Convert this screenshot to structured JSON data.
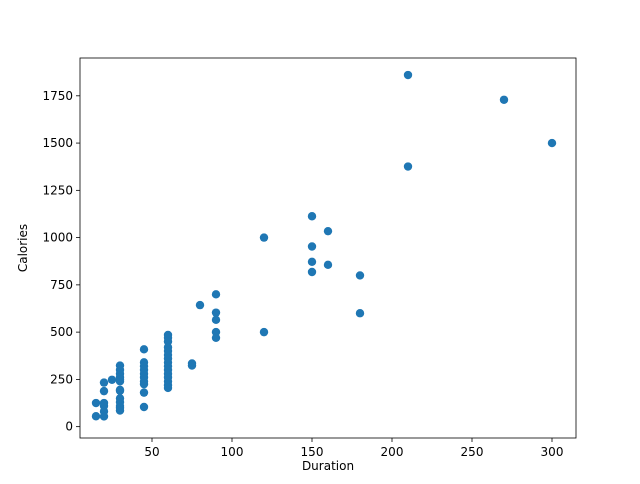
{
  "chart_data": {
    "type": "scatter",
    "xlabel": "Duration",
    "ylabel": "Calories",
    "xlim": [
      5,
      315
    ],
    "ylim": [
      -60,
      1950
    ],
    "xticks": [
      50,
      100,
      150,
      200,
      250,
      300
    ],
    "yticks": [
      0,
      250,
      500,
      750,
      1000,
      1250,
      1500,
      1750
    ],
    "grid": false,
    "color": "#1f77b4",
    "points": [
      [
        15,
        125
      ],
      [
        15,
        55
      ],
      [
        20,
        233
      ],
      [
        20,
        188
      ],
      [
        20,
        125
      ],
      [
        20,
        110
      ],
      [
        20,
        81
      ],
      [
        20,
        54
      ],
      [
        25,
        248
      ],
      [
        30,
        323
      ],
      [
        30,
        300
      ],
      [
        30,
        280
      ],
      [
        30,
        260
      ],
      [
        30,
        250
      ],
      [
        30,
        240
      ],
      [
        30,
        195
      ],
      [
        30,
        190
      ],
      [
        30,
        150
      ],
      [
        30,
        130
      ],
      [
        30,
        110
      ],
      [
        30,
        100
      ],
      [
        30,
        85
      ],
      [
        45,
        409
      ],
      [
        45,
        340
      ],
      [
        45,
        320
      ],
      [
        45,
        300
      ],
      [
        45,
        280
      ],
      [
        45,
        260
      ],
      [
        45,
        240
      ],
      [
        45,
        225
      ],
      [
        45,
        180
      ],
      [
        45,
        104
      ],
      [
        60,
        485
      ],
      [
        60,
        470
      ],
      [
        60,
        450
      ],
      [
        60,
        420
      ],
      [
        60,
        400
      ],
      [
        60,
        380
      ],
      [
        60,
        360
      ],
      [
        60,
        340
      ],
      [
        60,
        320
      ],
      [
        60,
        300
      ],
      [
        60,
        280
      ],
      [
        60,
        260
      ],
      [
        60,
        240
      ],
      [
        60,
        220
      ],
      [
        60,
        205
      ],
      [
        75,
        334
      ],
      [
        75,
        323
      ],
      [
        80,
        643
      ],
      [
        90,
        700
      ],
      [
        90,
        603
      ],
      [
        90,
        565
      ],
      [
        90,
        500
      ],
      [
        90,
        470
      ],
      [
        120,
        1000
      ],
      [
        120,
        500
      ],
      [
        150,
        1113
      ],
      [
        150,
        953
      ],
      [
        150,
        872
      ],
      [
        150,
        818
      ],
      [
        160,
        1034
      ],
      [
        160,
        856
      ],
      [
        180,
        800
      ],
      [
        180,
        600
      ],
      [
        210,
        1860
      ],
      [
        210,
        1376
      ],
      [
        270,
        1729
      ],
      [
        300,
        1500
      ]
    ]
  }
}
